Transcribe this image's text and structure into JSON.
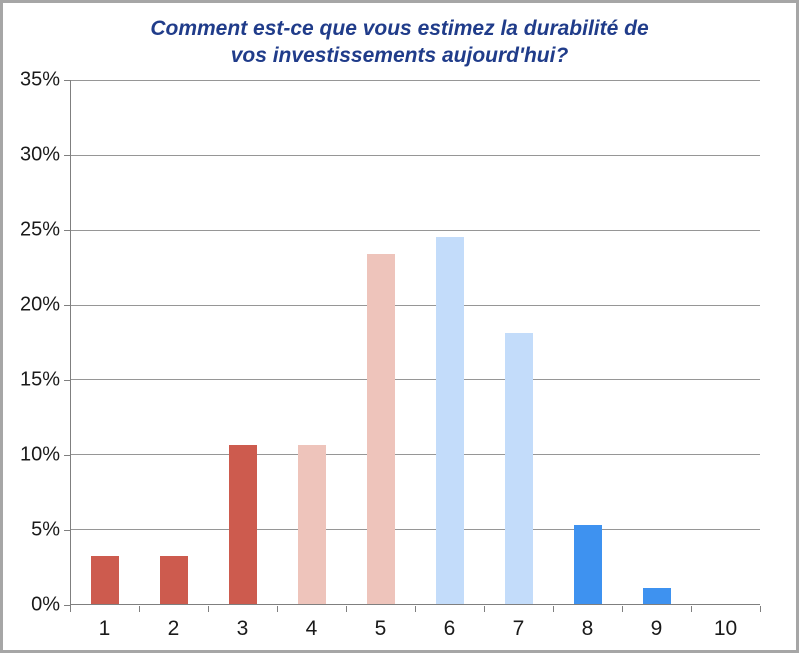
{
  "window": {
    "background_color": "#ffffff",
    "frame_border_color": "#a6a6a6"
  },
  "chart_data": {
    "type": "bar",
    "title": "Comment est-ce que vous estimez la durabilité de vos investissements aujourd'hui?",
    "title_color": "#203c8a",
    "categories": [
      "1",
      "2",
      "3",
      "4",
      "5",
      "6",
      "7",
      "8",
      "9",
      "10"
    ],
    "values": [
      3.2,
      3.2,
      10.6,
      10.6,
      23.4,
      24.5,
      18.1,
      5.3,
      1.1,
      0
    ],
    "bar_colors": [
      "#cd5b4e",
      "#cd5b4e",
      "#cd5b4e",
      "#eec4bb",
      "#eec4bb",
      "#c3dcfa",
      "#c3dcfa",
      "#3e92f0",
      "#3e92f0",
      "#3e92f0"
    ],
    "xlabel": "",
    "ylabel": "",
    "ylim": [
      0,
      35
    ],
    "ytick_step": 5,
    "ytick_labels": [
      "0%",
      "5%",
      "10%",
      "15%",
      "20%",
      "25%",
      "30%",
      "35%"
    ],
    "grid": true,
    "gridline_color": "#969696",
    "axis_color": "#7f7f7f",
    "tick_label_color": "#1a1a1a",
    "legend_position": "none"
  }
}
